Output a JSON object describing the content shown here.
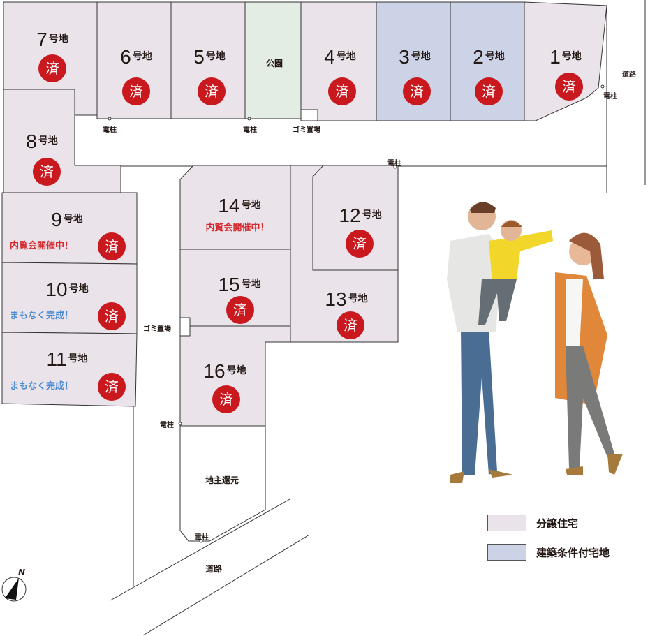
{
  "colors": {
    "subdivision": "#ebe3ea",
    "conditional": "#cdd3e6",
    "park": "#e3ede3",
    "sold": "#c9191f",
    "open_house": "#d62a2f",
    "coming_soon": "#4c8ad0"
  },
  "lot_suffix": "号地",
  "sold_mark": "済",
  "lots": [
    {
      "number": "1",
      "sold": true,
      "type": "conditional-none"
    },
    {
      "number": "2",
      "sold": true,
      "type": "conditional"
    },
    {
      "number": "3",
      "sold": true,
      "type": "conditional"
    },
    {
      "number": "4",
      "sold": true
    },
    {
      "number": "5",
      "sold": true
    },
    {
      "number": "6",
      "sold": true
    },
    {
      "number": "7",
      "sold": true
    },
    {
      "number": "8",
      "sold": true
    },
    {
      "number": "9",
      "sold": true,
      "note": "内覧会開催中！"
    },
    {
      "number": "10",
      "sold": true,
      "note": "まもなく完成！"
    },
    {
      "number": "11",
      "sold": true,
      "note": "まもなく完成！"
    },
    {
      "number": "12",
      "sold": true
    },
    {
      "number": "13",
      "sold": true
    },
    {
      "number": "14",
      "sold": false,
      "note": "内覧会開催中！"
    },
    {
      "number": "15",
      "sold": true
    },
    {
      "number": "16",
      "sold": true
    }
  ],
  "labels": {
    "park": "公園",
    "pole": "電柱",
    "garbage": "ゴミ置場",
    "road": "道路",
    "landowner": "地主還元",
    "north": "N"
  },
  "legend": [
    {
      "label": "分譲住宅",
      "color": "#ebe3ea"
    },
    {
      "label": "建築条件付宅地",
      "color": "#cdd3e6"
    }
  ]
}
